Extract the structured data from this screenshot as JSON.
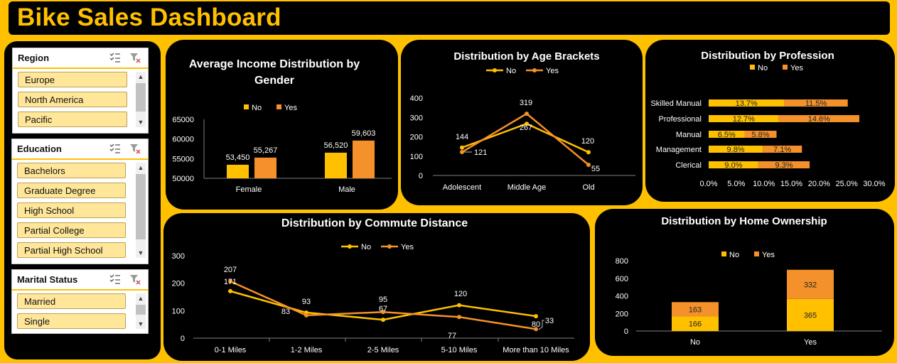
{
  "header": {
    "title": "Bike Sales Dashboard"
  },
  "colors": {
    "no": "#FFC000",
    "yes": "#F4912A",
    "panel": "#000000",
    "background": "#FFC000"
  },
  "slicers": {
    "region": {
      "title": "Region",
      "items": [
        "Europe",
        "North America",
        "Pacific"
      ]
    },
    "education": {
      "title": "Education",
      "items": [
        "Bachelors",
        "Graduate Degree",
        "High School",
        "Partial College",
        "Partial High School"
      ]
    },
    "marital": {
      "title": "Marital Status",
      "items": [
        "Married",
        "Single"
      ]
    }
  },
  "chart_data": [
    {
      "id": "income",
      "type": "bar",
      "title": "Average Income Distribution by Gender",
      "categories": [
        "Female",
        "Male"
      ],
      "series": [
        {
          "name": "No",
          "values": [
            53450,
            56520
          ],
          "labels": [
            "53,450",
            "56,520"
          ]
        },
        {
          "name": "Yes",
          "values": [
            55267,
            59603
          ],
          "labels": [
            "55,267",
            "59,603"
          ]
        }
      ],
      "ylim": [
        50000,
        65000
      ],
      "yticks": [
        50000,
        55000,
        60000,
        65000
      ],
      "legend": "top",
      "grid": false
    },
    {
      "id": "age",
      "type": "line",
      "title": "Distribution by Age Brackets",
      "categories": [
        "Adolescent",
        "Middle Age",
        "Old"
      ],
      "series": [
        {
          "name": "No",
          "values": [
            144,
            267,
            120
          ]
        },
        {
          "name": "Yes",
          "values": [
            121,
            319,
            55
          ]
        }
      ],
      "ylim": [
        0,
        400
      ],
      "yticks": [
        0,
        100,
        200,
        300,
        400
      ],
      "legend": "top",
      "grid": false
    },
    {
      "id": "profession",
      "type": "bar",
      "orientation": "horizontal",
      "stacked": true,
      "title": "Distribution by Profession",
      "categories": [
        "Skilled Manual",
        "Professional",
        "Manual",
        "Management",
        "Clerical"
      ],
      "series": [
        {
          "name": "No",
          "values": [
            13.7,
            12.7,
            6.5,
            9.8,
            9.0
          ],
          "labels": [
            "13.7%",
            "12.7%",
            "6.5%",
            "9.8%",
            "9.0%"
          ]
        },
        {
          "name": "Yes",
          "values": [
            11.5,
            14.6,
            5.8,
            7.1,
            9.3
          ],
          "labels": [
            "11.5%",
            "14.6%",
            "5.8%",
            "7.1%",
            "9.3%"
          ]
        }
      ],
      "xlim": [
        0,
        30
      ],
      "xticks": [
        "0.0%",
        "5.0%",
        "10.0%",
        "15.0%",
        "20.0%",
        "25.0%",
        "30.0%"
      ],
      "legend": "top",
      "grid": false
    },
    {
      "id": "commute",
      "type": "line",
      "title": "Distribution by Commute Distance",
      "categories": [
        "0-1 Miles",
        "1-2 Miles",
        "2-5 Miles",
        "5-10 Miles",
        "More than 10 Miles"
      ],
      "series": [
        {
          "name": "No",
          "values": [
            171,
            93,
            67,
            120,
            80
          ]
        },
        {
          "name": "Yes",
          "values": [
            207,
            83,
            95,
            77,
            33
          ]
        }
      ],
      "ylim": [
        0,
        300
      ],
      "yticks": [
        0,
        100,
        200,
        300
      ],
      "legend": "top",
      "grid": false
    },
    {
      "id": "home",
      "type": "bar",
      "stacked": true,
      "title": "Distribution by Home Ownership",
      "categories": [
        "No",
        "Yes"
      ],
      "series": [
        {
          "name": "No",
          "values": [
            166,
            365
          ]
        },
        {
          "name": "Yes",
          "values": [
            163,
            332
          ]
        }
      ],
      "ylim": [
        0,
        800
      ],
      "yticks": [
        0,
        200,
        400,
        600,
        800
      ],
      "legend": "top",
      "grid": false
    }
  ]
}
